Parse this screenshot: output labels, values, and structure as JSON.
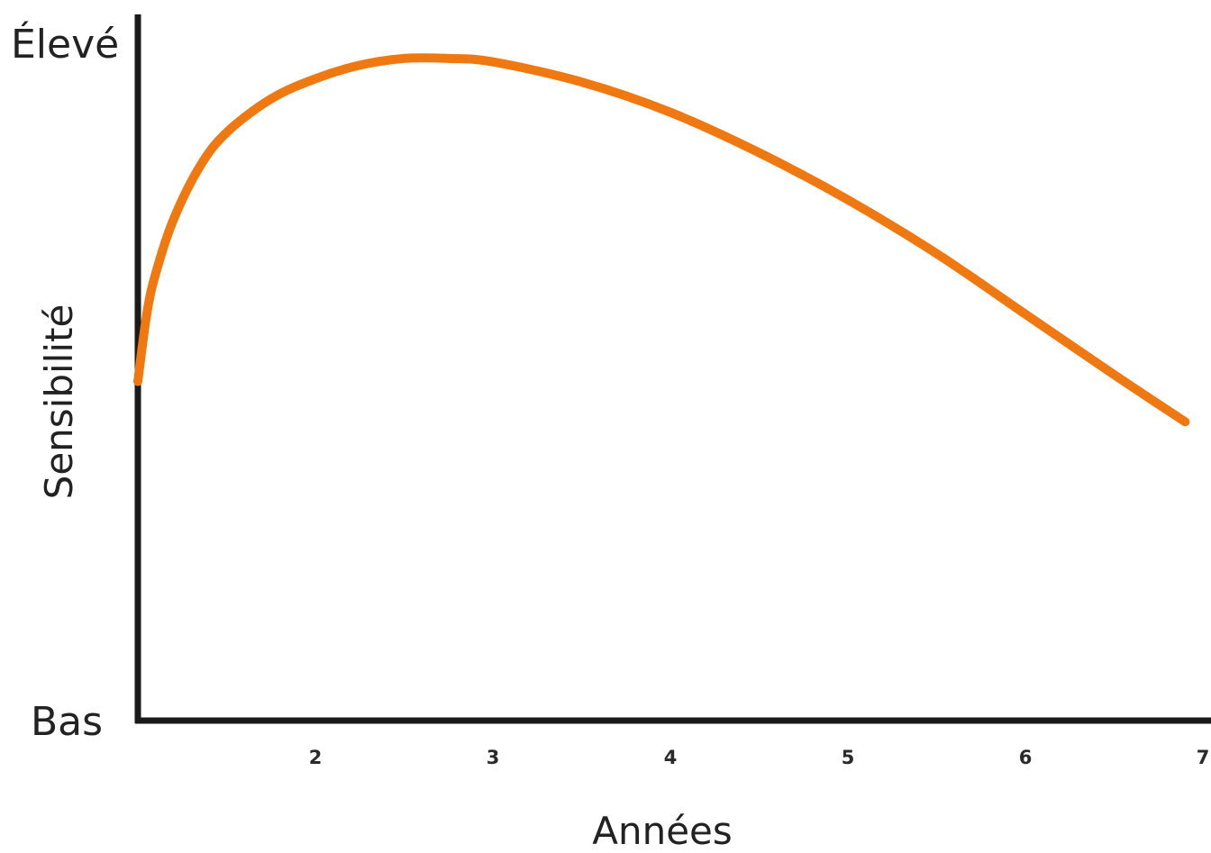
{
  "chart_data": {
    "type": "line",
    "title": "",
    "xlabel": "Années",
    "ylabel": "Sensibilité",
    "y_level_labels": {
      "high": "Élevé",
      "low": "Bas"
    },
    "x_ticks": [
      "2",
      "3",
      "4",
      "5",
      "6",
      "7"
    ],
    "xlim": [
      1,
      7
    ],
    "ylim": [
      0,
      100
    ],
    "grid": false,
    "series": [
      {
        "color": "#f07810",
        "x": [
          1.0,
          1.05,
          1.1,
          1.2,
          1.35,
          1.5,
          1.75,
          2.0,
          2.25,
          2.5,
          2.75,
          3.0,
          3.5,
          4.0,
          4.5,
          5.0,
          5.5,
          6.0,
          6.5,
          6.9
        ],
        "y": [
          50,
          60,
          66,
          74,
          82,
          87,
          92,
          95,
          97,
          98,
          98,
          97.5,
          94.5,
          90,
          84,
          77,
          69,
          60,
          51,
          44
        ]
      }
    ]
  }
}
